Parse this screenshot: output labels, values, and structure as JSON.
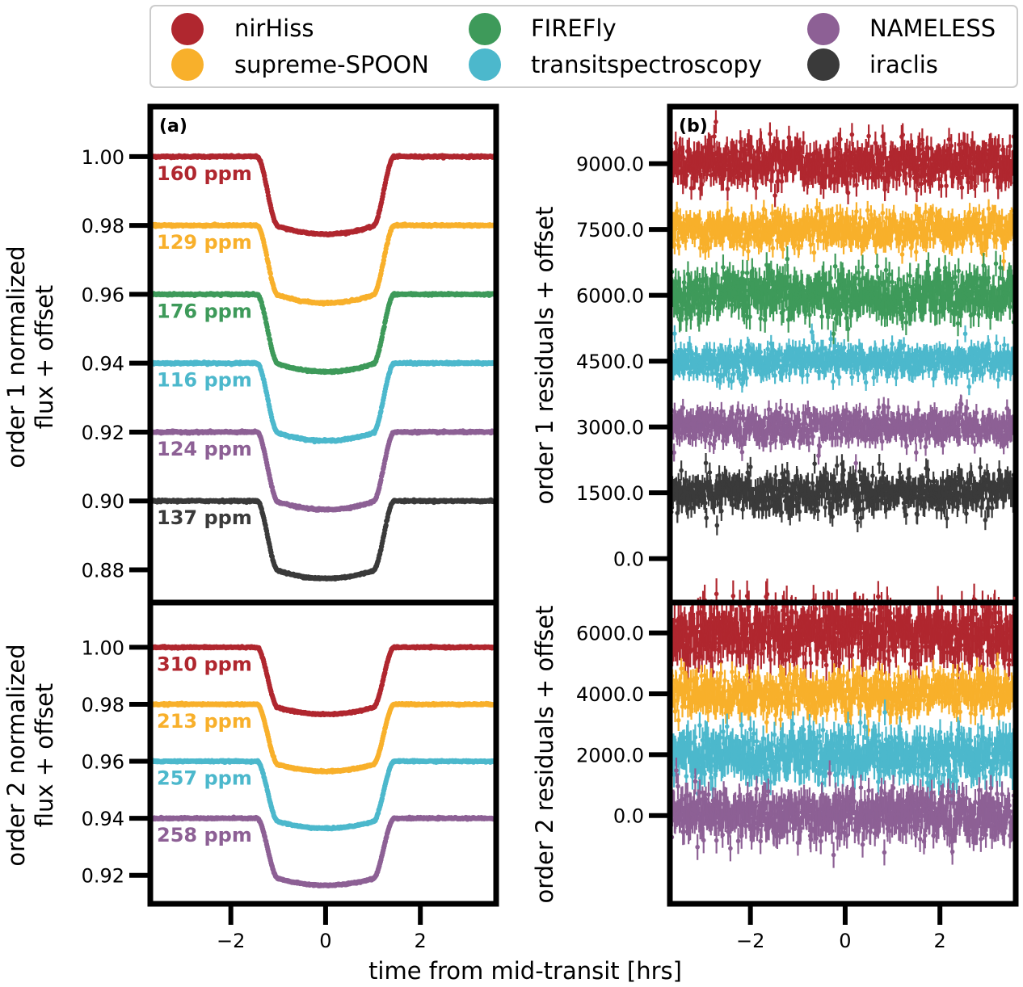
{
  "colors": {
    "nirHiss": "#b0272f",
    "supreme-SPOON": "#f8b02b",
    "FIREFly": "#3e9a5a",
    "transitspectroscopy": "#4cb8cc",
    "NAMELESS": "#8d6095",
    "iraclis": "#3a3a3a"
  },
  "legend": {
    "entries": [
      "nirHiss",
      "supreme-SPOON",
      "FIREFly",
      "transitspectroscopy",
      "NAMELESS",
      "iraclis"
    ]
  },
  "labels": {
    "xlabel": "time from mid-transit [hrs]",
    "a_top_ylabel_1": "order 1 normalized",
    "a_top_ylabel_2": "flux + offset",
    "a_bot_ylabel_1": "order 2 normalized",
    "a_bot_ylabel_2": "flux + offset",
    "b_top_ylabel": "order 1 residuals + offset",
    "b_bot_ylabel": "order 2 residuals + offset",
    "panel_a": "(a)",
    "panel_b": "(b)"
  },
  "chart_data": [
    {
      "type": "scatter",
      "panel": "a-order1",
      "xlabel": "time from mid-transit [hrs]",
      "ylabel": "order 1 normalized flux + offset",
      "xlim": [
        -3.7,
        3.6
      ],
      "ylim": [
        0.8705,
        1.0145
      ],
      "x_ticks": [
        "−2",
        "0",
        "2"
      ],
      "y_ticks": [
        "1.00",
        "0.98",
        "0.96",
        "0.94",
        "0.92",
        "0.90",
        "0.88"
      ],
      "series": [
        {
          "name": "nirHiss",
          "baseline": 1.0,
          "depth": 0.0225,
          "rms_label": "160 ppm"
        },
        {
          "name": "supreme-SPOON",
          "baseline": 0.98,
          "depth": 0.0225,
          "rms_label": "129 ppm"
        },
        {
          "name": "FIREFly",
          "baseline": 0.96,
          "depth": 0.0225,
          "rms_label": "176 ppm"
        },
        {
          "name": "transitspectroscopy",
          "baseline": 0.94,
          "depth": 0.0225,
          "rms_label": "116 ppm"
        },
        {
          "name": "NAMELESS",
          "baseline": 0.92,
          "depth": 0.0225,
          "rms_label": "124 ppm"
        },
        {
          "name": "iraclis",
          "baseline": 0.9,
          "depth": 0.0225,
          "rms_label": "137 ppm"
        }
      ]
    },
    {
      "type": "scatter",
      "panel": "a-order2",
      "xlabel": "time from mid-transit [hrs]",
      "ylabel": "order 2 normalized flux + offset",
      "xlim": [
        -3.7,
        3.6
      ],
      "ylim": [
        0.91,
        1.0157
      ],
      "x_ticks": [
        "−2",
        "0",
        "2"
      ],
      "y_ticks": [
        "1.00",
        "0.98",
        "0.96",
        "0.94",
        "0.92"
      ],
      "series": [
        {
          "name": "nirHiss",
          "baseline": 1.0,
          "depth": 0.0235,
          "rms_label": "310 ppm"
        },
        {
          "name": "supreme-SPOON",
          "baseline": 0.98,
          "depth": 0.0235,
          "rms_label": "213 ppm"
        },
        {
          "name": "transitspectroscopy",
          "baseline": 0.96,
          "depth": 0.0235,
          "rms_label": "257 ppm"
        },
        {
          "name": "NAMELESS",
          "baseline": 0.94,
          "depth": 0.0235,
          "rms_label": "258 ppm"
        }
      ]
    },
    {
      "type": "scatter",
      "panel": "b-order1",
      "xlabel": "time from mid-transit [hrs]",
      "ylabel": "order 1 residuals + offset",
      "xlim": [
        -3.7,
        3.6
      ],
      "ylim": [
        -1000,
        10300
      ],
      "x_ticks": [
        "−2",
        "0",
        "2"
      ],
      "y_ticks": [
        "9000.0",
        "7500.0",
        "6000.0",
        "4500.0",
        "3000.0",
        "1500.0",
        "0.0"
      ],
      "series": [
        {
          "name": "nirHiss",
          "offset": 9000,
          "scatter": 160
        },
        {
          "name": "supreme-SPOON",
          "offset": 7500,
          "scatter": 129
        },
        {
          "name": "FIREFly",
          "offset": 6000,
          "scatter": 176
        },
        {
          "name": "transitspectroscopy",
          "offset": 4500,
          "scatter": 116
        },
        {
          "name": "NAMELESS",
          "offset": 3000,
          "scatter": 124
        },
        {
          "name": "iraclis",
          "offset": 1500,
          "scatter": 137
        }
      ]
    },
    {
      "type": "scatter",
      "panel": "b-order2",
      "xlabel": "time from mid-transit [hrs]",
      "ylabel": "order 2 residuals + offset",
      "xlim": [
        -3.7,
        3.6
      ],
      "ylim": [
        -2900,
        7000
      ],
      "x_ticks": [
        "−2",
        "0",
        "2"
      ],
      "y_ticks": [
        "6000.0",
        "4000.0",
        "2000.0",
        "0.0"
      ],
      "series": [
        {
          "name": "nirHiss",
          "offset": 6000,
          "scatter": 310
        },
        {
          "name": "supreme-SPOON",
          "offset": 4000,
          "scatter": 213
        },
        {
          "name": "transitspectroscopy",
          "offset": 2000,
          "scatter": 257
        },
        {
          "name": "NAMELESS",
          "offset": 0,
          "scatter": 258
        }
      ]
    }
  ]
}
